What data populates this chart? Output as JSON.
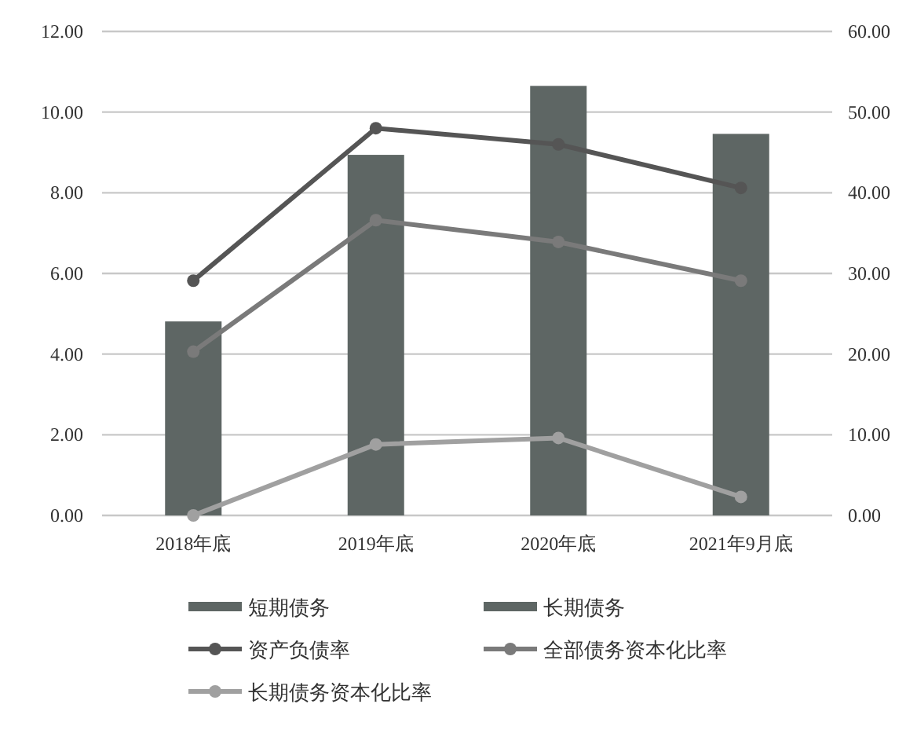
{
  "chart_data": {
    "type": "bar",
    "categories": [
      "2018年底",
      "2019年底",
      "2020年底",
      "2021年9月底"
    ],
    "series": [
      {
        "name": "短期债务",
        "color": "#5e6664",
        "values": [
          4.81,
          8.94,
          10.65,
          9.46
        ]
      },
      {
        "name": "长期债务",
        "color": "#5e6664",
        "values": [
          null,
          null,
          null,
          null
        ]
      },
      {
        "name": "资产负债率",
        "type": "line",
        "axis": "y2",
        "color": "#555555",
        "values": [
          29.1,
          48.0,
          46.0,
          40.6
        ]
      },
      {
        "name": "全部债务资本化比率",
        "type": "line",
        "axis": "y2",
        "color": "#7a7a7a",
        "values": [
          20.3,
          36.6,
          33.9,
          29.1
        ]
      },
      {
        "name": "长期债务资本化比率",
        "type": "line",
        "axis": "y2",
        "color": "#a0a0a0",
        "values": [
          0,
          8.8,
          9.6,
          2.3
        ]
      }
    ],
    "stacked": true,
    "marker": "circle",
    "grid": "y",
    "legend": "bottom",
    "ylim": [
      0,
      12
    ],
    "yticks": [
      {
        "value": 0,
        "label": "0.00"
      },
      {
        "value": 2,
        "label": "2.00"
      },
      {
        "value": 4,
        "label": "4.00"
      },
      {
        "value": 6,
        "label": "6.00"
      },
      {
        "value": 8,
        "label": "8.00"
      },
      {
        "value": 10,
        "label": "10.00"
      },
      {
        "value": 12,
        "label": "12.00"
      }
    ],
    "y2lim": [
      0,
      60
    ],
    "y2ticks": [
      {
        "value": 0,
        "label": "0.00"
      },
      {
        "value": 10,
        "label": "10.00"
      },
      {
        "value": 20,
        "label": "20.00"
      },
      {
        "value": 30,
        "label": "30.00"
      },
      {
        "value": 40,
        "label": "40.00"
      },
      {
        "value": 50,
        "label": "50.00"
      },
      {
        "value": 60,
        "label": "60.00"
      }
    ]
  }
}
